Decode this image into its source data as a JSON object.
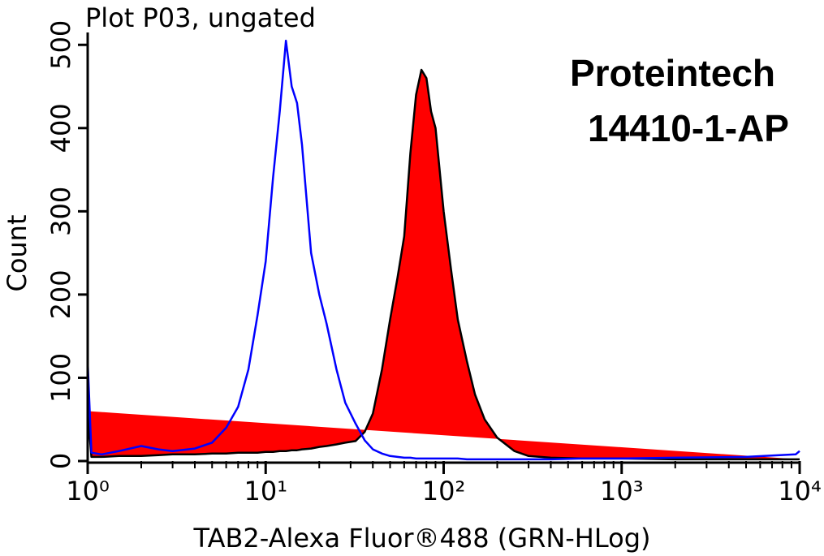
{
  "chart_data": {
    "type": "histogram-overlay",
    "title": "Plot P03, ungated",
    "xlabel": "TAB2-Alexa Fluor®488 (GRN-HLog)",
    "ylabel": "Count",
    "annotations": [
      "Proteintech",
      "14410-1-AP"
    ],
    "xscale": "log",
    "xlim": [
      1,
      10000
    ],
    "xticks": [
      {
        "value": 1,
        "label": "10⁰"
      },
      {
        "value": 10,
        "label": "10¹"
      },
      {
        "value": 100,
        "label": "10²"
      },
      {
        "value": 1000,
        "label": "10³"
      },
      {
        "value": 10000,
        "label": "10⁴"
      }
    ],
    "ylim": [
      0,
      510
    ],
    "yticks": [
      0,
      100,
      200,
      300,
      400,
      500
    ],
    "x": [
      1,
      1.05,
      1.2,
      1.5,
      2,
      2.5,
      3,
      4,
      5,
      6,
      7,
      8,
      9,
      10,
      11,
      12,
      13,
      14,
      15,
      16,
      18,
      20,
      22,
      25,
      28,
      32,
      36,
      40,
      45,
      50,
      55,
      60,
      65,
      70,
      75,
      80,
      85,
      90,
      100,
      110,
      120,
      135,
      150,
      170,
      200,
      250,
      300,
      400,
      600,
      1000,
      2000,
      5000,
      9500,
      10000
    ],
    "series": [
      {
        "color": "#ff0000",
        "edgecolor": "#000000",
        "filled": true,
        "values": [
          60,
          5,
          5,
          6,
          6,
          7,
          8,
          8,
          9,
          9,
          10,
          10,
          10,
          11,
          11,
          12,
          12,
          13,
          13,
          14,
          15,
          17,
          18,
          20,
          22,
          24,
          35,
          57,
          110,
          170,
          220,
          270,
          370,
          440,
          470,
          460,
          420,
          400,
          300,
          230,
          170,
          120,
          80,
          50,
          28,
          12,
          6,
          4,
          3,
          3,
          2,
          2,
          2,
          2
        ]
      },
      {
        "color": "#0000ff",
        "filled": false,
        "values": [
          120,
          10,
          8,
          12,
          18,
          14,
          12,
          15,
          22,
          40,
          65,
          110,
          175,
          240,
          340,
          420,
          505,
          450,
          430,
          380,
          250,
          200,
          165,
          110,
          70,
          45,
          25,
          14,
          9,
          6,
          5,
          4,
          4,
          3,
          3,
          3,
          3,
          3,
          3,
          3,
          3,
          2,
          2,
          2,
          2,
          2,
          2,
          2,
          3,
          3,
          4,
          5,
          8,
          12
        ]
      }
    ]
  }
}
